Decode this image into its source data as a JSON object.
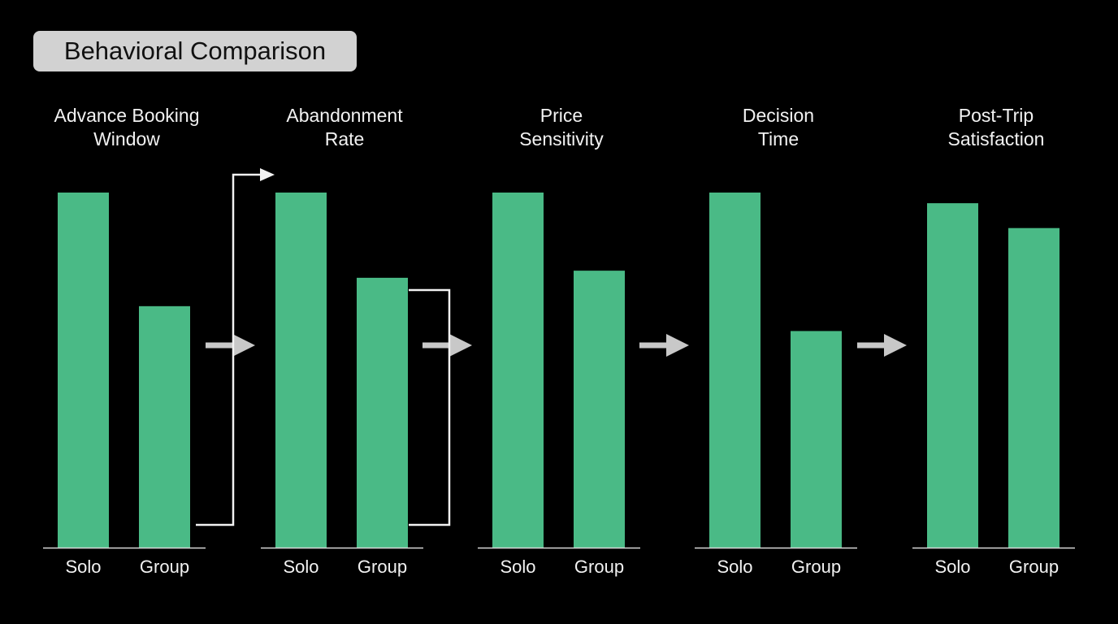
{
  "header": {
    "title": "Behavioral Comparison"
  },
  "chart_data": [
    {
      "type": "bar",
      "title": "Advance Booking\nWindow",
      "categories": [
        "Solo",
        "Group"
      ],
      "values": [
        100,
        68
      ],
      "color": "#4aba86",
      "ylim": [
        0,
        100
      ]
    },
    {
      "type": "bar",
      "title": "Abandonment\nRate",
      "categories": [
        "Solo",
        "Group"
      ],
      "values": [
        100,
        76
      ],
      "color": "#4aba86",
      "ylim": [
        0,
        100
      ]
    },
    {
      "type": "bar",
      "title": "Price\nSensitivity",
      "categories": [
        "Solo",
        "Group"
      ],
      "values": [
        100,
        78
      ],
      "color": "#4aba86",
      "ylim": [
        0,
        100
      ]
    },
    {
      "type": "bar",
      "title": "Decision\nTime",
      "categories": [
        "Solo",
        "Group"
      ],
      "values": [
        100,
        61
      ],
      "color": "#4aba86",
      "ylim": [
        0,
        100
      ]
    },
    {
      "type": "bar",
      "title": "Post-Trip\nSatisfaction",
      "categories": [
        "Solo",
        "Group"
      ],
      "values": [
        97,
        90
      ],
      "color": "#4aba86",
      "ylim": [
        0,
        100
      ]
    }
  ]
}
